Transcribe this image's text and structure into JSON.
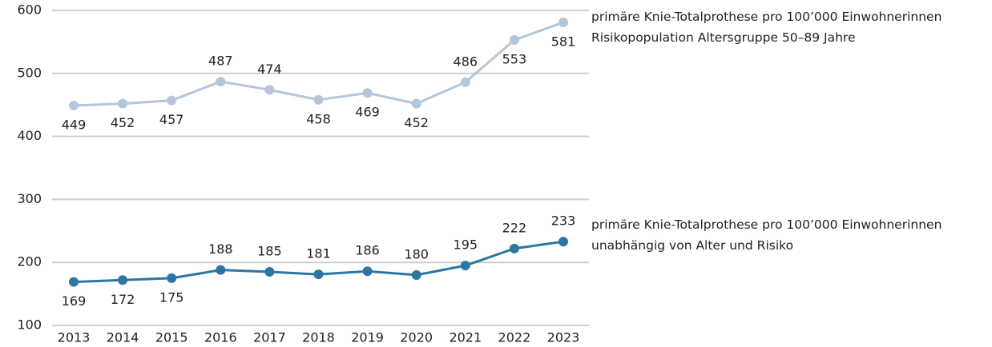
{
  "chart_data": {
    "type": "line",
    "categories": [
      "2013",
      "2014",
      "2015",
      "2016",
      "2017",
      "2018",
      "2019",
      "2020",
      "2021",
      "2022",
      "2023"
    ],
    "series": [
      {
        "name": "primäre Knie-Totalprothese pro 100’000 Einwohnerinnen\nRisikopopulation Altersgruppe 50–89 Jahre",
        "color": "#b3c6dc",
        "values": [
          449,
          452,
          457,
          487,
          474,
          458,
          469,
          452,
          486,
          553,
          581
        ]
      },
      {
        "name": "primäre Knie-Totalprothese pro 100’000 Einwohnerinnen\nunabhängig von Alter und Risiko",
        "color": "#2b77a2",
        "values": [
          169,
          172,
          175,
          188,
          185,
          181,
          186,
          180,
          195,
          222,
          233
        ]
      }
    ],
    "ylim": [
      100,
      600
    ],
    "yticks": [
      100,
      200,
      300,
      400,
      500,
      600
    ],
    "grid": true
  }
}
